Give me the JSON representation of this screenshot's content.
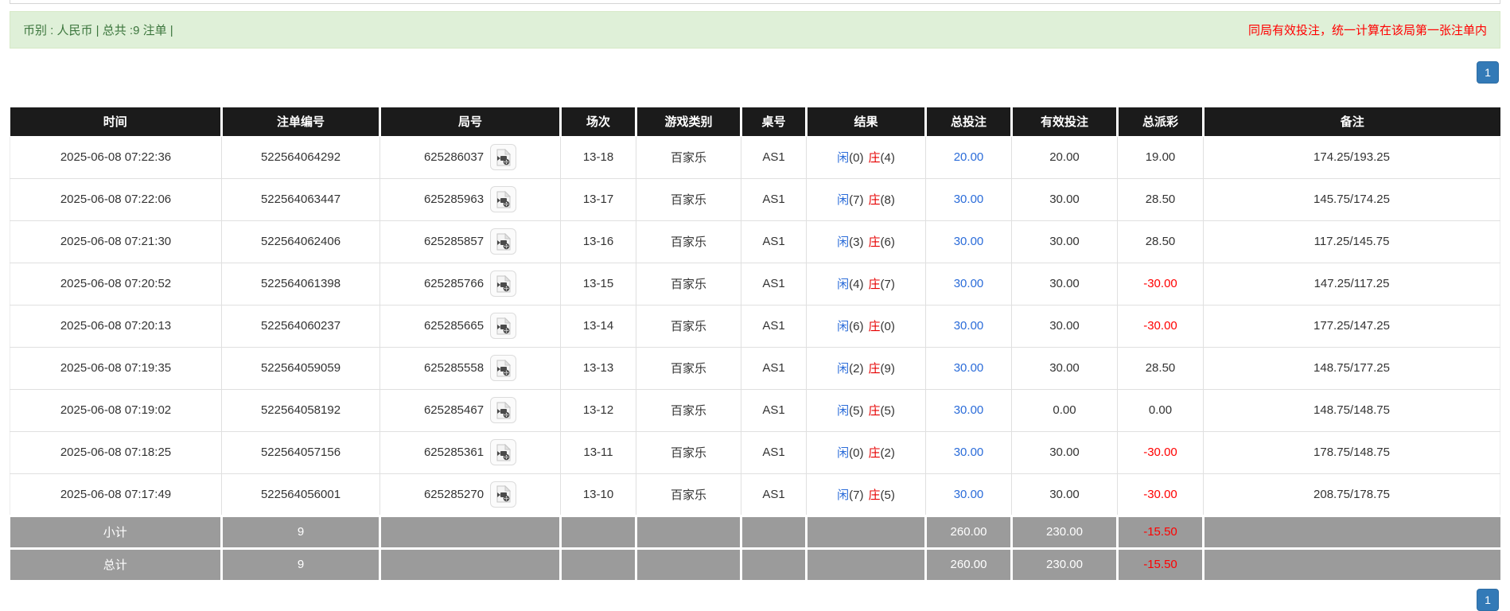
{
  "summary_bar": {
    "left_text": "币别 : 人民币 | 总共 :9 注单 |",
    "right_notice": "同局有效投注，统一计算在该局第一张注单内"
  },
  "pagination": {
    "page": "1"
  },
  "table": {
    "columns": [
      "时间",
      "注单编号",
      "局号",
      "场次",
      "游戏类别",
      "桌号",
      "结果",
      "总投注",
      "有效投注",
      "总派彩",
      "备注"
    ],
    "column_keys": [
      "time",
      "bet_id",
      "round_id",
      "session",
      "game_type",
      "table_no",
      "result",
      "total_bet",
      "valid_bet",
      "payout",
      "remark"
    ],
    "rows": [
      {
        "time": "2025-06-08 07:22:36",
        "bet_id": "522564064292",
        "round_id": "625286037",
        "session": "13-18",
        "game_type": "百家乐",
        "table_no": "AS1",
        "result": {
          "p_label": "闲",
          "p_val": "(0)",
          "b_label": "庄",
          "b_val": "(4)"
        },
        "total_bet": "20.00",
        "valid_bet": "20.00",
        "payout": "19.00",
        "remark": "174.25/193.25"
      },
      {
        "time": "2025-06-08 07:22:06",
        "bet_id": "522564063447",
        "round_id": "625285963",
        "session": "13-17",
        "game_type": "百家乐",
        "table_no": "AS1",
        "result": {
          "p_label": "闲",
          "p_val": "(7)",
          "b_label": "庄",
          "b_val": "(8)"
        },
        "total_bet": "30.00",
        "valid_bet": "30.00",
        "payout": "28.50",
        "remark": "145.75/174.25"
      },
      {
        "time": "2025-06-08 07:21:30",
        "bet_id": "522564062406",
        "round_id": "625285857",
        "session": "13-16",
        "game_type": "百家乐",
        "table_no": "AS1",
        "result": {
          "p_label": "闲",
          "p_val": "(3)",
          "b_label": "庄",
          "b_val": "(6)"
        },
        "total_bet": "30.00",
        "valid_bet": "30.00",
        "payout": "28.50",
        "remark": "117.25/145.75"
      },
      {
        "time": "2025-06-08 07:20:52",
        "bet_id": "522564061398",
        "round_id": "625285766",
        "session": "13-15",
        "game_type": "百家乐",
        "table_no": "AS1",
        "result": {
          "p_label": "闲",
          "p_val": "(4)",
          "b_label": "庄",
          "b_val": "(7)"
        },
        "total_bet": "30.00",
        "valid_bet": "30.00",
        "payout": "-30.00",
        "remark": "147.25/117.25"
      },
      {
        "time": "2025-06-08 07:20:13",
        "bet_id": "522564060237",
        "round_id": "625285665",
        "session": "13-14",
        "game_type": "百家乐",
        "table_no": "AS1",
        "result": {
          "p_label": "闲",
          "p_val": "(6)",
          "b_label": "庄",
          "b_val": "(0)"
        },
        "total_bet": "30.00",
        "valid_bet": "30.00",
        "payout": "-30.00",
        "remark": "177.25/147.25"
      },
      {
        "time": "2025-06-08 07:19:35",
        "bet_id": "522564059059",
        "round_id": "625285558",
        "session": "13-13",
        "game_type": "百家乐",
        "table_no": "AS1",
        "result": {
          "p_label": "闲",
          "p_val": "(2)",
          "b_label": "庄",
          "b_val": "(9)"
        },
        "total_bet": "30.00",
        "valid_bet": "30.00",
        "payout": "28.50",
        "remark": "148.75/177.25"
      },
      {
        "time": "2025-06-08 07:19:02",
        "bet_id": "522564058192",
        "round_id": "625285467",
        "session": "13-12",
        "game_type": "百家乐",
        "table_no": "AS1",
        "result": {
          "p_label": "闲",
          "p_val": "(5)",
          "b_label": "庄",
          "b_val": "(5)"
        },
        "total_bet": "30.00",
        "valid_bet": "0.00",
        "payout": "0.00",
        "remark": "148.75/148.75"
      },
      {
        "time": "2025-06-08 07:18:25",
        "bet_id": "522564057156",
        "round_id": "625285361",
        "session": "13-11",
        "game_type": "百家乐",
        "table_no": "AS1",
        "result": {
          "p_label": "闲",
          "p_val": "(0)",
          "b_label": "庄",
          "b_val": "(2)"
        },
        "total_bet": "30.00",
        "valid_bet": "30.00",
        "payout": "-30.00",
        "remark": "178.75/148.75"
      },
      {
        "time": "2025-06-08 07:17:49",
        "bet_id": "522564056001",
        "round_id": "625285270",
        "session": "13-10",
        "game_type": "百家乐",
        "table_no": "AS1",
        "result": {
          "p_label": "闲",
          "p_val": "(7)",
          "b_label": "庄",
          "b_val": "(5)"
        },
        "total_bet": "30.00",
        "valid_bet": "30.00",
        "payout": "-30.00",
        "remark": "208.75/178.75"
      }
    ],
    "subtotal": {
      "label": "小计",
      "count": "9",
      "total_bet": "260.00",
      "valid_bet": "230.00",
      "payout": "-15.50",
      "remark": ""
    },
    "total": {
      "label": "总计",
      "count": "9",
      "total_bet": "260.00",
      "valid_bet": "230.00",
      "payout": "-15.50",
      "remark": ""
    }
  },
  "colors": {
    "header_bg": "#1b1b1b",
    "footer_bg": "#9b9b9b",
    "success_bg": "#dff0d8",
    "notice_red": "#ff0000",
    "link_blue": "#2b6cd9",
    "banker_red": "#e60000",
    "pager_blue": "#337ab7"
  }
}
